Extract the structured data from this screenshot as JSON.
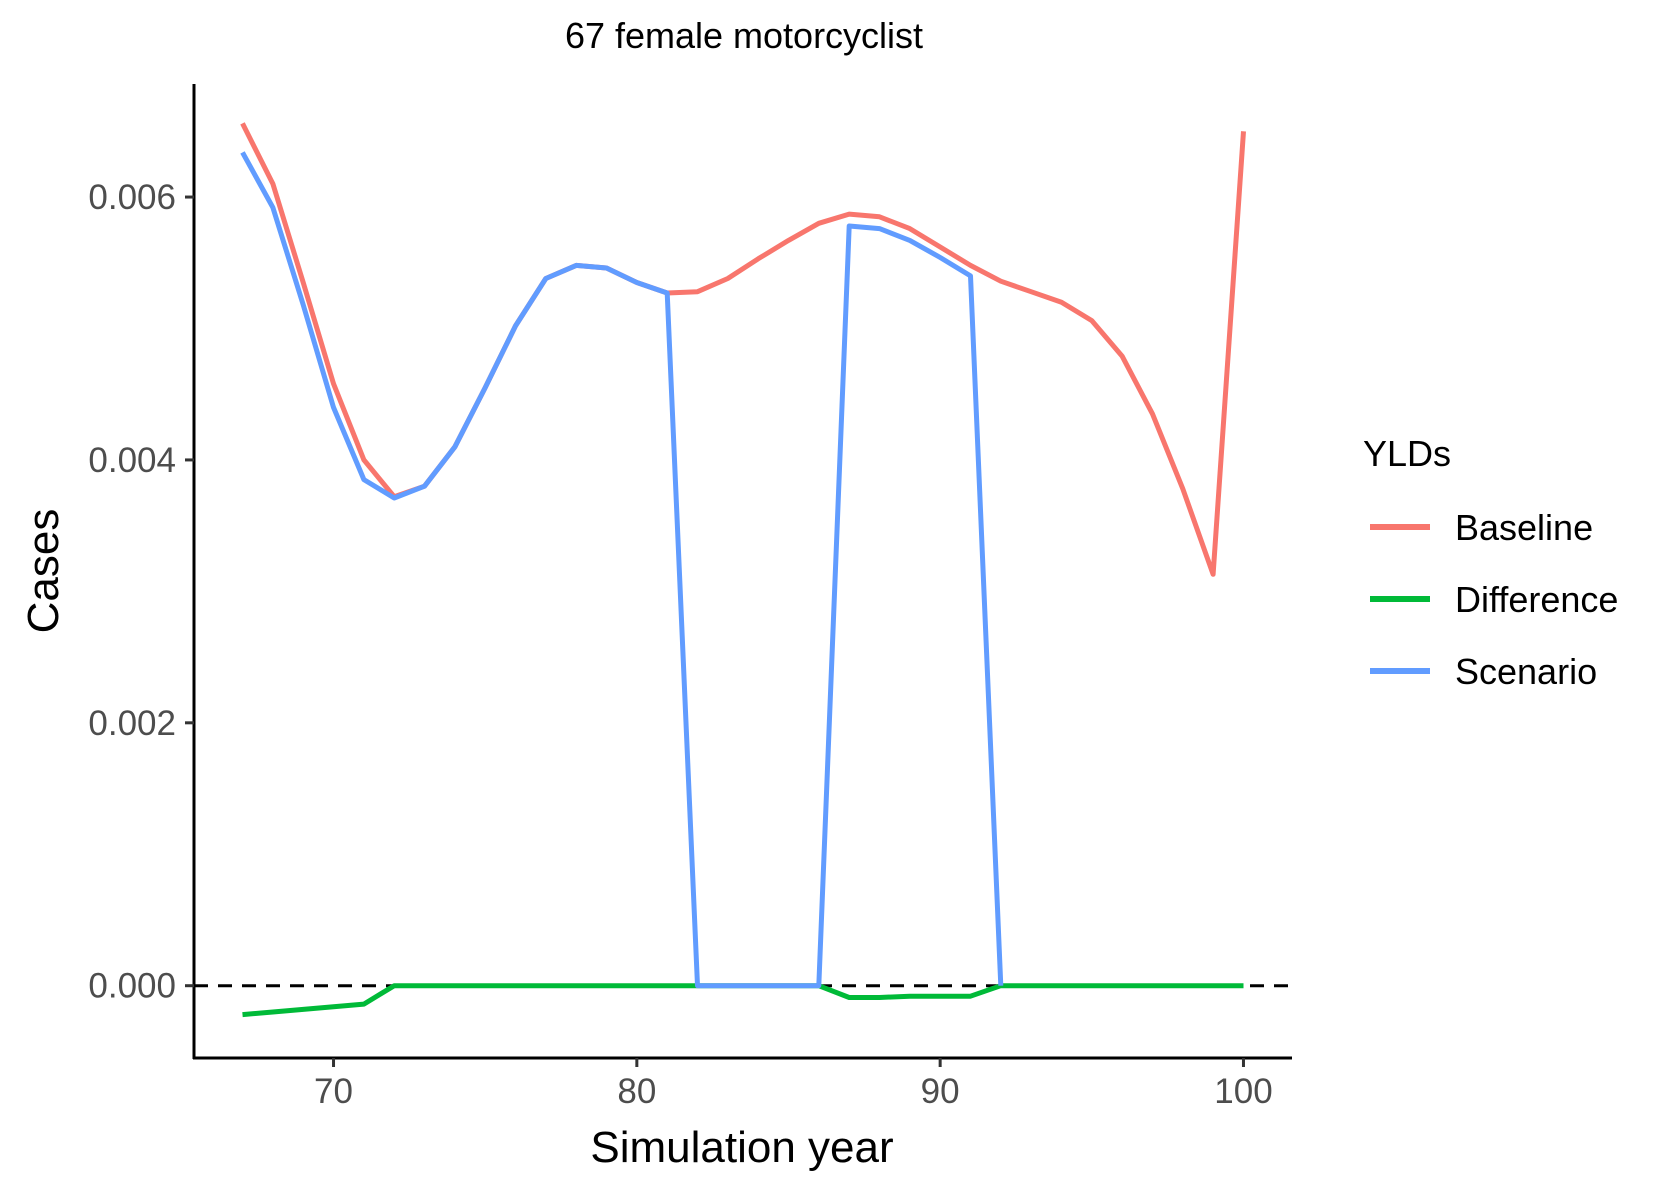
{
  "chart_data": {
    "type": "line",
    "title": "67 female motorcyclist",
    "xlabel": "Simulation year",
    "ylabel": "Cases",
    "xlim": [
      65.4,
      101.6
    ],
    "ylim": [
      -0.00055,
      0.00686
    ],
    "x_ticks": [
      70,
      80,
      90,
      100
    ],
    "x_tick_labels": [
      "70",
      "80",
      "90",
      "100"
    ],
    "y_ticks": [
      0,
      0.002,
      0.004,
      0.006
    ],
    "y_tick_labels": [
      "0.000",
      "0.002",
      "0.004",
      "0.006"
    ],
    "grid": false,
    "reference_line": {
      "y": 0,
      "style": "dashed",
      "color": "#000000"
    },
    "legend": {
      "title": "YLDs",
      "position": "right",
      "entries": [
        "Baseline",
        "Difference",
        "Scenario"
      ]
    },
    "series": [
      {
        "name": "Baseline",
        "color": "#F8766D",
        "x": [
          67,
          68,
          69,
          70,
          71,
          72,
          73,
          74,
          75,
          76,
          77,
          78,
          79,
          80,
          81,
          82,
          83,
          84,
          85,
          86,
          87,
          88,
          89,
          90,
          91,
          92,
          93,
          94,
          95,
          96,
          97,
          98,
          99,
          100
        ],
        "values": [
          0.00656,
          0.0061,
          0.00535,
          0.00458,
          0.004,
          0.00372,
          0.0038,
          0.0041,
          0.00455,
          0.00502,
          0.00538,
          0.00548,
          0.00546,
          0.00535,
          0.00527,
          0.00528,
          0.00538,
          0.00553,
          0.00567,
          0.0058,
          0.00587,
          0.00585,
          0.00576,
          0.00562,
          0.00548,
          0.00536,
          0.00528,
          0.0052,
          0.00506,
          0.00479,
          0.00435,
          0.00378,
          0.00313,
          0.0065
        ]
      },
      {
        "name": "Difference",
        "color": "#00BA38",
        "x": [
          67,
          68,
          69,
          70,
          71,
          72,
          73,
          74,
          75,
          76,
          77,
          78,
          79,
          80,
          81,
          82,
          83,
          84,
          85,
          86,
          87,
          88,
          89,
          90,
          91,
          92,
          93,
          94,
          95,
          96,
          97,
          98,
          99,
          100
        ],
        "values": [
          -0.00022,
          -0.0002,
          -0.00018,
          -0.00016,
          -0.00014,
          0,
          0,
          0,
          0,
          0,
          0,
          0,
          0,
          0,
          0,
          0,
          0,
          0,
          0,
          0,
          -9e-05,
          -9e-05,
          -8e-05,
          -8e-05,
          -8e-05,
          0,
          0,
          0,
          0,
          0,
          0,
          0,
          0,
          0
        ]
      },
      {
        "name": "Scenario",
        "color": "#619CFF",
        "x": [
          67,
          68,
          69,
          70,
          71,
          72,
          73,
          74,
          75,
          76,
          77,
          78,
          79,
          80,
          81,
          82,
          86,
          87,
          88,
          89,
          90,
          91,
          92
        ],
        "values": [
          0.00634,
          0.00592,
          0.00518,
          0.0044,
          0.00385,
          0.00371,
          0.0038,
          0.0041,
          0.00455,
          0.00502,
          0.00538,
          0.00548,
          0.00546,
          0.00535,
          0.00527,
          0,
          0,
          0.00578,
          0.00576,
          0.00567,
          0.00554,
          0.0054,
          0
        ]
      }
    ]
  }
}
